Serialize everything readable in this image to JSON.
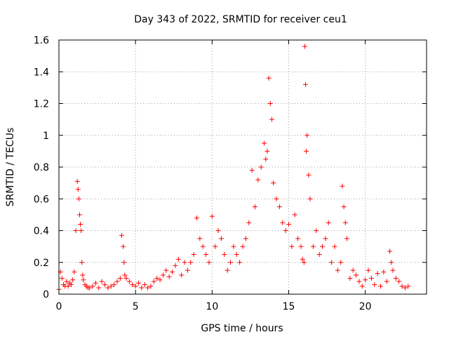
{
  "chart_data": {
    "type": "scatter",
    "title": "Day 343 of 2022, SRMTID for receiver ceu1",
    "xlabel": "GPS time / hours",
    "ylabel": "SRMTID / TECUs",
    "xlim": [
      0,
      24
    ],
    "ylim": [
      0,
      1.6
    ],
    "grid": true,
    "x_ticks": [
      "0",
      "5",
      "10",
      "15",
      "20"
    ],
    "y_ticks": [
      "0",
      "0.2",
      "0.4",
      "0.6",
      "0.8",
      "1",
      "1.2",
      "1.4",
      "1.6"
    ],
    "marker_color": "#ff0000",
    "marker": "+",
    "series": [
      {
        "name": "ceu1",
        "x": [
          0.0,
          0.1,
          0.2,
          0.3,
          0.4,
          0.5,
          0.6,
          0.7,
          0.8,
          0.9,
          1.0,
          1.1,
          1.2,
          1.25,
          1.3,
          1.35,
          1.4,
          1.45,
          1.5,
          1.55,
          1.6,
          1.7,
          1.8,
          1.9,
          2.0,
          2.2,
          2.4,
          2.6,
          2.8,
          3.0,
          3.2,
          3.4,
          3.6,
          3.8,
          4.0,
          4.1,
          4.2,
          4.25,
          4.3,
          4.4,
          4.6,
          4.8,
          5.0,
          5.2,
          5.4,
          5.6,
          5.8,
          6.0,
          6.2,
          6.4,
          6.6,
          6.8,
          7.0,
          7.2,
          7.4,
          7.6,
          7.8,
          8.0,
          8.2,
          8.4,
          8.6,
          8.8,
          9.0,
          9.2,
          9.4,
          9.6,
          9.8,
          10.0,
          10.2,
          10.4,
          10.6,
          10.8,
          11.0,
          11.2,
          11.4,
          11.6,
          11.8,
          12.0,
          12.2,
          12.4,
          12.6,
          12.8,
          13.0,
          13.2,
          13.4,
          13.5,
          13.6,
          13.7,
          13.8,
          13.9,
          14.0,
          14.2,
          14.4,
          14.6,
          14.8,
          15.0,
          15.2,
          15.4,
          15.6,
          15.8,
          15.9,
          16.0,
          16.05,
          16.1,
          16.15,
          16.2,
          16.3,
          16.4,
          16.6,
          16.8,
          17.0,
          17.2,
          17.4,
          17.6,
          17.8,
          18.0,
          18.2,
          18.4,
          18.5,
          18.6,
          18.7,
          18.8,
          19.0,
          19.2,
          19.4,
          19.6,
          19.8,
          20.0,
          20.2,
          20.4,
          20.6,
          20.8,
          21.0,
          21.2,
          21.4,
          21.6,
          21.7,
          21.8,
          22.0,
          22.2,
          22.4,
          22.6,
          22.8
        ],
        "y": [
          0.03,
          0.14,
          0.1,
          0.06,
          0.05,
          0.08,
          0.05,
          0.07,
          0.06,
          0.09,
          0.14,
          0.4,
          0.71,
          0.66,
          0.6,
          0.5,
          0.44,
          0.4,
          0.2,
          0.12,
          0.09,
          0.06,
          0.05,
          0.04,
          0.04,
          0.05,
          0.07,
          0.04,
          0.08,
          0.06,
          0.04,
          0.05,
          0.06,
          0.08,
          0.1,
          0.37,
          0.3,
          0.2,
          0.12,
          0.1,
          0.08,
          0.06,
          0.05,
          0.07,
          0.04,
          0.06,
          0.04,
          0.05,
          0.08,
          0.1,
          0.09,
          0.12,
          0.15,
          0.11,
          0.14,
          0.18,
          0.22,
          0.12,
          0.2,
          0.15,
          0.2,
          0.25,
          0.48,
          0.35,
          0.3,
          0.25,
          0.2,
          0.49,
          0.3,
          0.4,
          0.35,
          0.25,
          0.15,
          0.2,
          0.3,
          0.25,
          0.2,
          0.3,
          0.35,
          0.45,
          0.78,
          0.55,
          0.72,
          0.8,
          0.95,
          0.85,
          0.9,
          1.36,
          1.2,
          1.1,
          0.7,
          0.6,
          0.55,
          0.45,
          0.4,
          0.44,
          0.3,
          0.5,
          0.35,
          0.3,
          0.22,
          0.2,
          1.56,
          1.32,
          0.9,
          1.0,
          0.75,
          0.6,
          0.3,
          0.4,
          0.25,
          0.3,
          0.35,
          0.45,
          0.2,
          0.3,
          0.15,
          0.2,
          0.68,
          0.55,
          0.45,
          0.35,
          0.1,
          0.15,
          0.12,
          0.08,
          0.05,
          0.09,
          0.15,
          0.1,
          0.06,
          0.13,
          0.05,
          0.14,
          0.08,
          0.27,
          0.2,
          0.15,
          0.1,
          0.08,
          0.05,
          0.04,
          0.05
        ]
      }
    ]
  }
}
